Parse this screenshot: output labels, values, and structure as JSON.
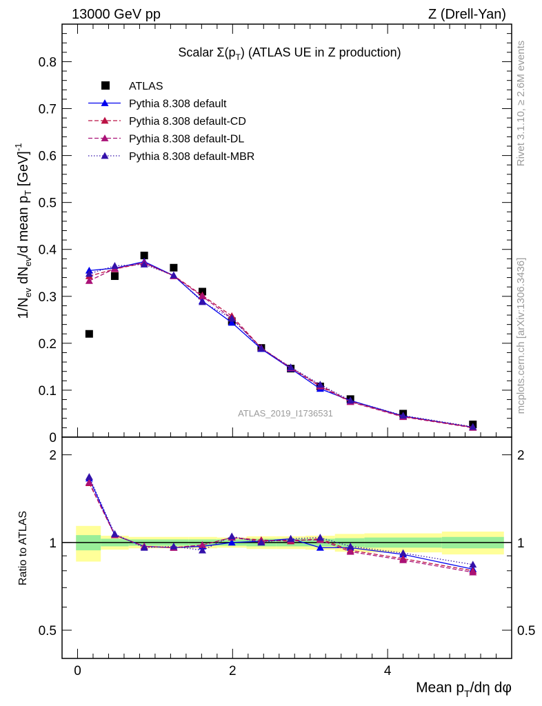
{
  "header": {
    "left": "13000 GeV pp",
    "right": "Z (Drell-Yan)"
  },
  "side_labels": {
    "rivet": "Rivet 3.1.10, ≥ 2.6M events",
    "mcplots": "mcplots.cern.ch [arXiv:1306.3436]"
  },
  "chart_data": [
    {
      "type": "scatter",
      "panel": "main",
      "title_pre": "Scalar Σ(p",
      "title_sub": "T",
      "title_post": ") (ATLAS UE in Z production)",
      "analysis_id": "ATLAS_2019_I1736531",
      "ylabel": "1/N_ev dN_ev/d mean p_T [GeV]^-1",
      "ylabel_parts": {
        "a": "1/N",
        "b": "ev",
        "c": " dN",
        "d": "ev",
        "e": "/d mean p",
        "f": "T",
        "g": " [GeV]",
        "h": "-1"
      },
      "xlim": [
        -0.2,
        5.6
      ],
      "ylim": [
        0,
        0.88
      ],
      "yticks": [
        0,
        0.1,
        0.2,
        0.3,
        0.4,
        0.5,
        0.6,
        0.7,
        0.8
      ],
      "ytick_labels": [
        "0",
        "0.1",
        "0.2",
        "0.3",
        "0.4",
        "0.5",
        "0.6",
        "0.7",
        "0.8"
      ],
      "legend_position": "top-left",
      "series": [
        {
          "name": "ATLAS",
          "style": "data",
          "color": "#000000",
          "marker": "square",
          "x": [
            0.15,
            0.48,
            0.86,
            1.24,
            1.61,
            1.99,
            2.37,
            2.75,
            3.13,
            3.52,
            4.2,
            5.1
          ],
          "y": [
            0.22,
            0.343,
            0.387,
            0.361,
            0.31,
            0.247,
            0.19,
            0.146,
            0.108,
            0.081,
            0.05,
            0.027
          ]
        },
        {
          "name": "Pythia 8.308 default",
          "style": "solid",
          "color": "#0000ee",
          "marker": "triangle",
          "x": [
            0.15,
            0.48,
            0.86,
            1.24,
            1.61,
            1.99,
            2.37,
            2.75,
            3.13,
            3.52,
            4.2,
            5.1
          ],
          "y": [
            0.355,
            0.36,
            0.374,
            0.344,
            0.29,
            0.244,
            0.188,
            0.146,
            0.103,
            0.078,
            0.045,
            0.021
          ]
        },
        {
          "name": "Pythia 8.308 default-CD",
          "style": "dashed",
          "color": "#bb1144",
          "marker": "triangle",
          "x": [
            0.15,
            0.48,
            0.86,
            1.24,
            1.61,
            1.99,
            2.37,
            2.75,
            3.13,
            3.52,
            4.2,
            5.1
          ],
          "y": [
            0.343,
            0.358,
            0.371,
            0.344,
            0.302,
            0.258,
            0.19,
            0.148,
            0.11,
            0.076,
            0.044,
            0.021
          ]
        },
        {
          "name": "Pythia 8.308 default-DL",
          "style": "dashed",
          "color": "#aa1177",
          "marker": "triangle",
          "x": [
            0.15,
            0.48,
            0.86,
            1.24,
            1.61,
            1.99,
            2.37,
            2.75,
            3.13,
            3.52,
            4.2,
            5.1
          ],
          "y": [
            0.333,
            0.359,
            0.372,
            0.343,
            0.3,
            0.253,
            0.19,
            0.147,
            0.108,
            0.075,
            0.043,
            0.02
          ]
        },
        {
          "name": "Pythia 8.308 default-MBR",
          "style": "dotted",
          "color": "#3311aa",
          "marker": "triangle",
          "x": [
            0.15,
            0.48,
            0.86,
            1.24,
            1.61,
            1.99,
            2.37,
            2.75,
            3.13,
            3.52,
            4.2,
            5.1
          ],
          "y": [
            0.348,
            0.365,
            0.368,
            0.345,
            0.288,
            0.253,
            0.189,
            0.149,
            0.112,
            0.078,
            0.046,
            0.022
          ]
        }
      ]
    },
    {
      "type": "line",
      "panel": "ratio",
      "xlabel": "Mean p_T/dη dφ",
      "xlabel_parts": {
        "a": "Mean p",
        "b": "T",
        "c": "/dη dφ"
      },
      "ylabel": "Ratio to ATLAS",
      "xlim": [
        -0.2,
        5.6
      ],
      "ylim": [
        0.4,
        2.3
      ],
      "log_y": true,
      "xticks": [
        0,
        2,
        4
      ],
      "xtick_labels": [
        "0",
        "2",
        "4"
      ],
      "yticks": [
        0.5,
        1,
        2
      ],
      "ytick_labels": [
        "0.5",
        "1",
        "2"
      ],
      "band_edges": [
        -0.02,
        0.3,
        0.66,
        1.05,
        1.43,
        1.8,
        2.18,
        2.56,
        2.94,
        3.32,
        3.7,
        4.7,
        5.5
      ],
      "band_inner": [
        0.06,
        0.03,
        0.025,
        0.025,
        0.025,
        0.025,
        0.03,
        0.03,
        0.03,
        0.035,
        0.04,
        0.045
      ],
      "band_outer": [
        0.14,
        0.055,
        0.045,
        0.045,
        0.045,
        0.04,
        0.05,
        0.05,
        0.055,
        0.07,
        0.075,
        0.09
      ],
      "series": [
        {
          "name": "Pythia 8.308 default",
          "x": [
            0.15,
            0.48,
            0.86,
            1.24,
            1.61,
            1.99,
            2.37,
            2.75,
            3.13,
            3.52,
            4.2,
            5.1
          ],
          "y": [
            1.66,
            1.06,
            0.97,
            0.96,
            0.97,
            1.0,
            1.01,
            1.03,
            0.96,
            0.96,
            0.91,
            0.81
          ]
        },
        {
          "name": "Pythia 8.308 default-CD",
          "x": [
            0.15,
            0.48,
            0.86,
            1.24,
            1.61,
            1.99,
            2.37,
            2.75,
            3.13,
            3.52,
            4.2,
            5.1
          ],
          "y": [
            1.6,
            1.06,
            0.97,
            0.96,
            0.98,
            1.04,
            1.02,
            1.01,
            1.03,
            0.94,
            0.88,
            0.8
          ]
        },
        {
          "name": "Pythia 8.308 default-DL",
          "x": [
            0.15,
            0.48,
            0.86,
            1.24,
            1.61,
            1.99,
            2.37,
            2.75,
            3.13,
            3.52,
            4.2,
            5.1
          ],
          "y": [
            1.61,
            1.06,
            0.97,
            0.96,
            0.98,
            1.04,
            1.01,
            1.02,
            1.02,
            0.93,
            0.87,
            0.79
          ]
        },
        {
          "name": "Pythia 8.308 default-MBR",
          "x": [
            0.15,
            0.48,
            0.86,
            1.24,
            1.61,
            1.99,
            2.37,
            2.75,
            3.13,
            3.52,
            4.2,
            5.1
          ],
          "y": [
            1.68,
            1.07,
            0.96,
            0.97,
            0.94,
            1.05,
            1.0,
            1.03,
            1.04,
            0.97,
            0.92,
            0.84
          ]
        }
      ]
    }
  ]
}
